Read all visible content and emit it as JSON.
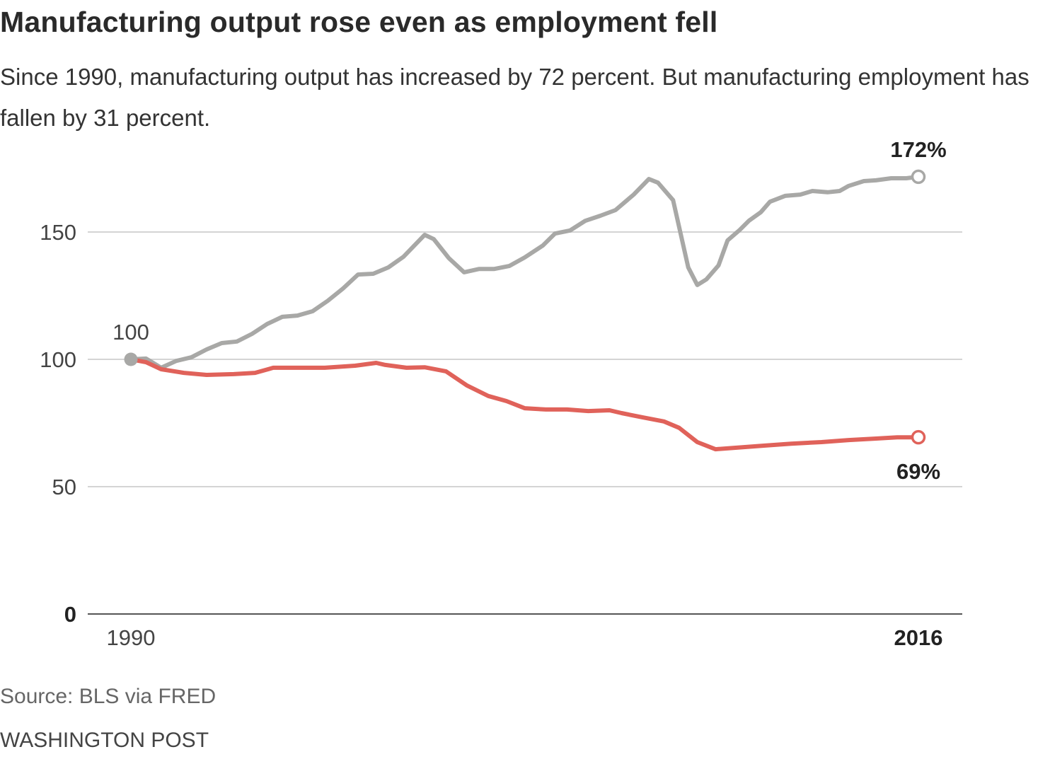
{
  "title": "Manufacturing output rose even as employment fell",
  "subtitle": "Since 1990, manufacturing output has increased by 72 percent. But manufacturing employment has fallen by 31 percent.",
  "source": "Source: BLS via FRED",
  "credit": "WASHINGTON POST",
  "chart_data": {
    "type": "line",
    "title": "Manufacturing output rose even as employment fell",
    "xlabel": "",
    "ylabel": "",
    "xlim": [
      1990,
      2016
    ],
    "ylim": [
      0,
      150
    ],
    "yticks": [
      "0",
      "50",
      "100",
      "150"
    ],
    "xticks": [
      "1990",
      "2016"
    ],
    "grid": true,
    "start_label": "100",
    "series": [
      {
        "name": "Manufacturing output",
        "color": "#a8a8a6",
        "end_label": "172%",
        "x": [
          1990.0,
          1990.5,
          1991.0,
          1991.5,
          1992.0,
          1992.5,
          1993.0,
          1993.5,
          1994.0,
          1994.5,
          1995.0,
          1995.5,
          1996.0,
          1996.5,
          1997.0,
          1997.5,
          1998.0,
          1998.5,
          1999.0,
          1999.7,
          2000.0,
          2000.5,
          2001.0,
          2001.5,
          2002.0,
          2002.5,
          2003.0,
          2003.6,
          2004.0,
          2004.5,
          2005.0,
          2005.5,
          2006.0,
          2006.6,
          2007.1,
          2007.4,
          2007.9,
          2008.4,
          2008.7,
          2009.0,
          2009.4,
          2009.7,
          2010.1,
          2010.4,
          2010.8,
          2011.1,
          2011.6,
          2012.1,
          2012.5,
          2013.0,
          2013.4,
          2013.7,
          2014.2,
          2014.6,
          2015.1,
          2015.6,
          2016.0
        ],
        "y": [
          100,
          100.3,
          96.7,
          99.4,
          100.8,
          103.9,
          106.4,
          107,
          110,
          113.9,
          116.7,
          117.2,
          118.9,
          123,
          127.8,
          133.3,
          133.6,
          136.1,
          140.3,
          148.9,
          147.2,
          139.7,
          134.2,
          135.5,
          135.5,
          136.7,
          140,
          144.7,
          149.4,
          150.6,
          154.4,
          156.4,
          158.6,
          164.7,
          170.8,
          169.4,
          162.5,
          136.1,
          129.2,
          131.4,
          136.9,
          146.7,
          150.8,
          154.4,
          157.8,
          161.9,
          164.2,
          164.7,
          166.1,
          165.6,
          166.1,
          168.1,
          170,
          170.3,
          171.1,
          171.1,
          171.7
        ]
      },
      {
        "name": "Manufacturing employment",
        "color": "#e0625a",
        "end_label": "69%",
        "x": [
          1990.0,
          1990.5,
          1991.0,
          1991.75,
          1992.5,
          1993.4,
          1994.1,
          1994.7,
          1995.3,
          1996.4,
          1997.4,
          1998.1,
          1998.4,
          1999.1,
          1999.7,
          2000.4,
          2001.1,
          2001.8,
          2002.4,
          2003.0,
          2003.7,
          2004.4,
          2005.1,
          2005.8,
          2006.2,
          2006.9,
          2007.6,
          2008.1,
          2008.7,
          2009.3,
          2010.0,
          2010.9,
          2011.8,
          2012.8,
          2013.7,
          2014.6,
          2015.3,
          2016.0
        ],
        "y": [
          100,
          98.9,
          96.1,
          94.7,
          93.9,
          94.2,
          94.7,
          96.7,
          96.7,
          96.7,
          97.5,
          98.6,
          97.8,
          96.7,
          96.9,
          95.3,
          89.7,
          85.6,
          83.6,
          80.8,
          80.3,
          80.3,
          79.7,
          80,
          78.9,
          77.2,
          75.6,
          73.1,
          67.5,
          64.7,
          65.3,
          66.1,
          66.9,
          67.5,
          68.3,
          68.9,
          69.4,
          69.4
        ]
      }
    ]
  }
}
